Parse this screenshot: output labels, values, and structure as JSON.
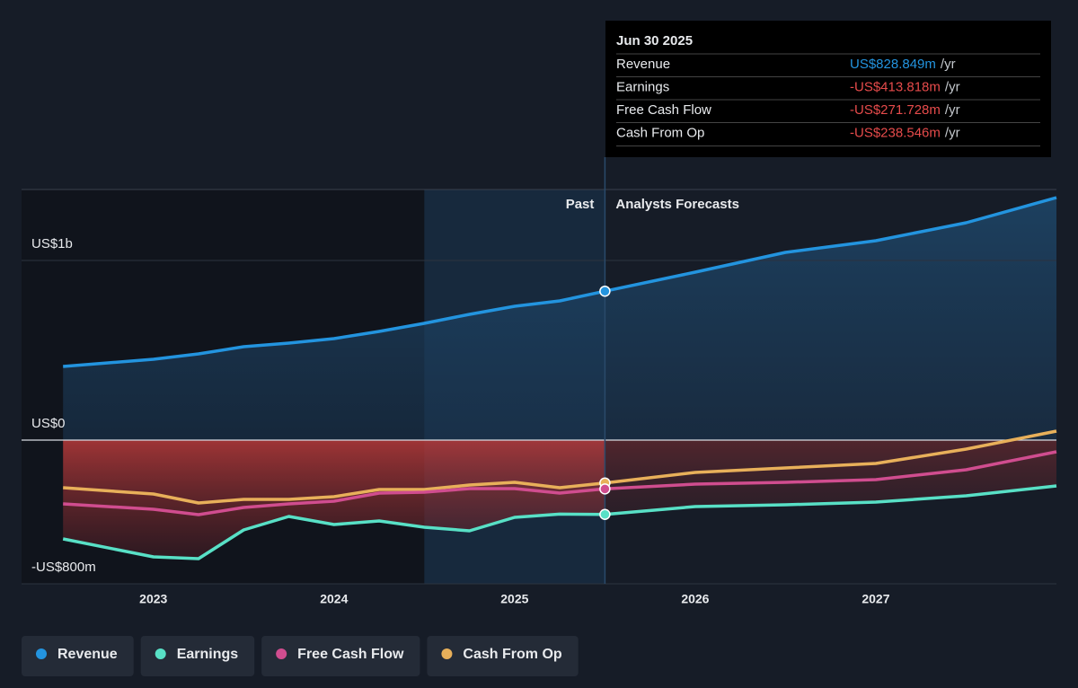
{
  "chart_data": {
    "type": "line",
    "x": [
      2022.5,
      2023,
      2023.25,
      2023.5,
      2023.75,
      2024,
      2024.25,
      2024.5,
      2024.75,
      2025,
      2025.25,
      2025.5,
      2026,
      2026.5,
      2027,
      2027.5,
      2028
    ],
    "series": [
      {
        "name": "Revenue",
        "color": "#2394df",
        "values": [
          410,
          450,
          480,
          520,
          540,
          565,
          605,
          650,
          700,
          745,
          775,
          828.849,
          935,
          1045,
          1110,
          1210,
          1350
        ]
      },
      {
        "name": "Earnings",
        "color": "#58e0c6",
        "values": [
          -550,
          -650,
          -660,
          -500,
          -425,
          -470,
          -450,
          -485,
          -505,
          -430,
          -412,
          -413.818,
          -370,
          -360,
          -345,
          -310,
          -255
        ]
      },
      {
        "name": "Free Cash Flow",
        "color": "#d04d8f",
        "values": [
          -355,
          -385,
          -415,
          -375,
          -355,
          -340,
          -295,
          -290,
          -270,
          -270,
          -295,
          -271.728,
          -245,
          -235,
          -220,
          -165,
          -65
        ]
      },
      {
        "name": "Cash From Op",
        "color": "#e8b05a",
        "values": [
          -265,
          -300,
          -350,
          -330,
          -330,
          -315,
          -275,
          -275,
          -250,
          -235,
          -265,
          -238.546,
          -180,
          -155,
          -130,
          -50,
          50
        ]
      }
    ],
    "xlim": [
      2022.27,
      2028
    ],
    "xticks": [
      2023,
      2024,
      2025,
      2026,
      2027
    ],
    "ylim": [
      -800,
      1395
    ],
    "yticks": [
      {
        "value": 1000,
        "label": "US$1b"
      },
      {
        "value": 0,
        "label": "US$0"
      },
      {
        "value": -800,
        "label": "-US$800m"
      }
    ],
    "highlight_range": [
      2024.5,
      2025.5
    ],
    "annotations": {
      "past": "Past",
      "forecast": "Analysts Forecasts"
    },
    "tooltip": {
      "title": "Jun 30 2025",
      "rows": [
        {
          "name": "Revenue",
          "value": "US$828.849m",
          "unit": "/yr",
          "color": "#2394df"
        },
        {
          "name": "Earnings",
          "value": "-US$413.818m",
          "unit": "/yr",
          "color": "#e64b4b"
        },
        {
          "name": "Free Cash Flow",
          "value": "-US$271.728m",
          "unit": "/yr",
          "color": "#e64b4b"
        },
        {
          "name": "Cash From Op",
          "value": "-US$238.546m",
          "unit": "/yr",
          "color": "#e64b4b"
        }
      ]
    }
  }
}
